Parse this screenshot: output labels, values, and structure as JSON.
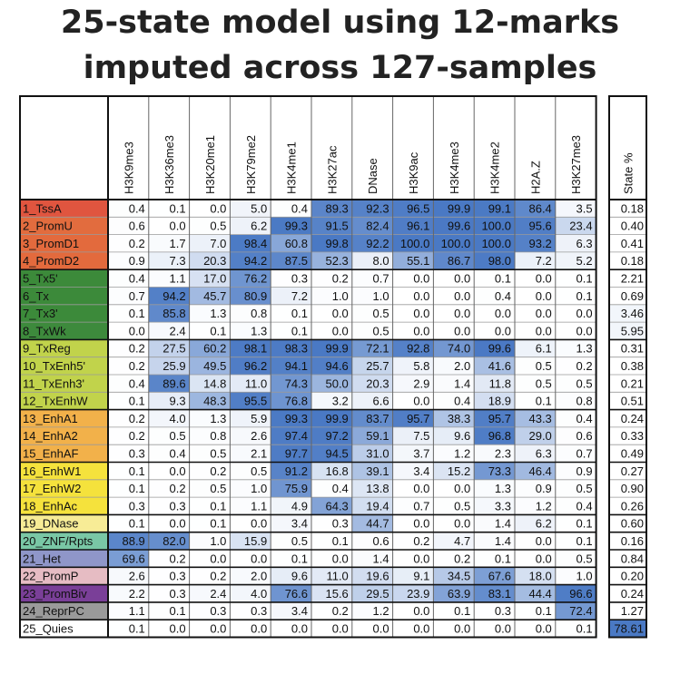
{
  "title_line1": "25-state model using 12-marks",
  "title_line2": "imputed across 127-samples",
  "colors": {
    "heat_base": "#ffffff",
    "heat_max": "#4a79c4",
    "grid": "#9a9a9a",
    "border": "#111111"
  },
  "chart_data": {
    "type": "heatmap",
    "title": "25-state model using 12-marks imputed across 127-samples",
    "columns": [
      "H3K9me3",
      "H3K36me3",
      "H3K20me1",
      "H3K79me2",
      "H3K4me1",
      "H3K27ac",
      "DNase",
      "H3K9ac",
      "H3K4me3",
      "H3K4me2",
      "H2A.Z",
      "H3K27me3"
    ],
    "extra_column": "State %",
    "rows": [
      {
        "label": "1_TssA",
        "color": "#e0553f",
        "values": [
          0.4,
          0.1,
          0.0,
          5.0,
          0.4,
          89.3,
          92.3,
          96.5,
          99.9,
          99.1,
          86.4,
          3.5
        ],
        "state_pct": 0.18
      },
      {
        "label": "2_PromU",
        "color": "#e26c3e",
        "values": [
          0.6,
          0.0,
          0.5,
          6.2,
          99.3,
          91.5,
          82.4,
          96.1,
          99.6,
          100.0,
          95.6,
          23.4
        ],
        "state_pct": 0.4
      },
      {
        "label": "3_PromD1",
        "color": "#e36a3d",
        "values": [
          0.2,
          1.7,
          7.0,
          98.4,
          60.8,
          99.8,
          92.2,
          100.0,
          100.0,
          100.0,
          93.2,
          6.3
        ],
        "state_pct": 0.41
      },
      {
        "label": "4_PromD2",
        "color": "#e36a3d",
        "values": [
          0.9,
          7.3,
          20.3,
          94.2,
          87.5,
          52.3,
          8.0,
          55.1,
          86.7,
          98.0,
          7.2,
          5.2
        ],
        "state_pct": 0.18
      },
      {
        "label": "5_Tx5'",
        "color": "#3c8a3a",
        "values": [
          0.4,
          1.1,
          17.0,
          76.2,
          0.3,
          0.2,
          0.7,
          0.0,
          0.0,
          0.1,
          0.0,
          0.1
        ],
        "state_pct": 2.21
      },
      {
        "label": "6_Tx",
        "color": "#3c8a3a",
        "values": [
          0.7,
          94.2,
          45.7,
          80.9,
          7.2,
          1.0,
          1.0,
          0.0,
          0.0,
          0.4,
          0.0,
          0.1
        ],
        "state_pct": 0.69
      },
      {
        "label": "7_Tx3'",
        "color": "#3c8a3a",
        "values": [
          0.1,
          85.8,
          1.3,
          0.8,
          0.1,
          0.0,
          0.5,
          0.0,
          0.0,
          0.0,
          0.0,
          0.0
        ],
        "state_pct": 3.46
      },
      {
        "label": "8_TxWk",
        "color": "#3d8a3c",
        "values": [
          0.0,
          2.4,
          0.1,
          1.3,
          0.1,
          0.0,
          0.5,
          0.0,
          0.0,
          0.0,
          0.0,
          0.0
        ],
        "state_pct": 5.95
      },
      {
        "label": "9_TxReg",
        "color": "#c1d34b",
        "values": [
          0.2,
          27.5,
          60.2,
          98.1,
          98.3,
          99.9,
          72.1,
          92.8,
          74.0,
          99.6,
          6.1,
          1.3
        ],
        "state_pct": 0.31
      },
      {
        "label": "10_TxEnh5'",
        "color": "#c1d34b",
        "values": [
          0.2,
          25.9,
          49.5,
          96.2,
          94.1,
          94.6,
          25.7,
          5.8,
          2.0,
          41.6,
          0.5,
          0.2
        ],
        "state_pct": 0.38
      },
      {
        "label": "11_TxEnh3'",
        "color": "#c1d34b",
        "values": [
          0.4,
          89.6,
          14.8,
          11.0,
          74.3,
          50.0,
          20.3,
          2.9,
          1.4,
          11.8,
          0.5,
          0.5
        ],
        "state_pct": 0.21
      },
      {
        "label": "12_TxEnhW",
        "color": "#c1d34b",
        "values": [
          0.1,
          9.3,
          48.3,
          95.5,
          76.8,
          3.2,
          6.6,
          0.0,
          0.4,
          18.9,
          0.1,
          0.8
        ],
        "state_pct": 0.51
      },
      {
        "label": "13_EnhA1",
        "color": "#f2b14a",
        "values": [
          0.2,
          4.0,
          1.3,
          5.9,
          99.3,
          99.9,
          83.7,
          95.7,
          38.3,
          95.7,
          43.3,
          0.4
        ],
        "state_pct": 0.24
      },
      {
        "label": "14_EnhA2",
        "color": "#f2b14a",
        "values": [
          0.2,
          0.5,
          0.8,
          2.6,
          97.4,
          97.2,
          59.1,
          7.5,
          9.6,
          96.8,
          29.0,
          0.6
        ],
        "state_pct": 0.33
      },
      {
        "label": "15_EnhAF",
        "color": "#f2b14a",
        "values": [
          0.3,
          0.4,
          0.5,
          2.1,
          97.7,
          94.5,
          31.0,
          3.7,
          1.2,
          2.3,
          6.3,
          0.7
        ],
        "state_pct": 0.49
      },
      {
        "label": "16_EnhW1",
        "color": "#f5e23c",
        "values": [
          0.1,
          0.0,
          0.2,
          0.5,
          91.2,
          16.8,
          39.1,
          3.4,
          15.2,
          73.3,
          46.4,
          0.9
        ],
        "state_pct": 0.27
      },
      {
        "label": "17_EnhW2",
        "color": "#f5e23c",
        "values": [
          0.1,
          0.2,
          0.5,
          1.0,
          75.9,
          0.4,
          13.8,
          0.0,
          0.0,
          1.3,
          0.9,
          0.5
        ],
        "state_pct": 0.9
      },
      {
        "label": "18_EnhAc",
        "color": "#f5e23c",
        "values": [
          0.3,
          0.3,
          0.1,
          1.1,
          4.9,
          64.3,
          19.4,
          0.7,
          0.5,
          3.3,
          1.2,
          0.4
        ],
        "state_pct": 0.26
      },
      {
        "label": "19_DNase",
        "color": "#f7ec96",
        "values": [
          0.1,
          0.0,
          0.1,
          0.0,
          3.4,
          0.3,
          44.7,
          0.0,
          0.0,
          1.4,
          6.2,
          0.1
        ],
        "state_pct": 0.6
      },
      {
        "label": "20_ZNF/Rpts",
        "color": "#79c7a5",
        "values": [
          88.9,
          82.0,
          1.0,
          15.9,
          0.5,
          0.1,
          0.6,
          0.2,
          4.7,
          1.4,
          0.0,
          0.1
        ],
        "state_pct": 0.16
      },
      {
        "label": "21_Het",
        "color": "#8f96c9",
        "values": [
          69.6,
          0.2,
          0.0,
          0.0,
          0.1,
          0.0,
          1.4,
          0.0,
          0.2,
          0.1,
          0.0,
          0.5
        ],
        "state_pct": 0.84
      },
      {
        "label": "22_PromP",
        "color": "#e6bcc3",
        "values": [
          2.6,
          0.3,
          0.2,
          2.0,
          9.6,
          11.0,
          19.6,
          9.1,
          34.5,
          67.6,
          18.0,
          1.0
        ],
        "state_pct": 0.2
      },
      {
        "label": "23_PromBiv",
        "color": "#7a3f98",
        "values": [
          2.2,
          0.3,
          2.4,
          4.0,
          76.6,
          15.6,
          29.5,
          23.9,
          63.9,
          83.1,
          44.4,
          96.6
        ],
        "state_pct": 0.24
      },
      {
        "label": "24_ReprPC",
        "color": "#9a9a9a",
        "values": [
          1.1,
          0.1,
          0.3,
          0.3,
          3.4,
          0.2,
          1.2,
          0.0,
          0.1,
          0.3,
          0.1,
          72.4
        ],
        "state_pct": 1.27
      },
      {
        "label": "25_Quies",
        "color": "#ffffff",
        "values": [
          0.1,
          0.0,
          0.0,
          0.0,
          0.0,
          0.0,
          0.0,
          0.0,
          0.0,
          0.0,
          0.0,
          0.1
        ],
        "state_pct": 78.61
      }
    ]
  }
}
